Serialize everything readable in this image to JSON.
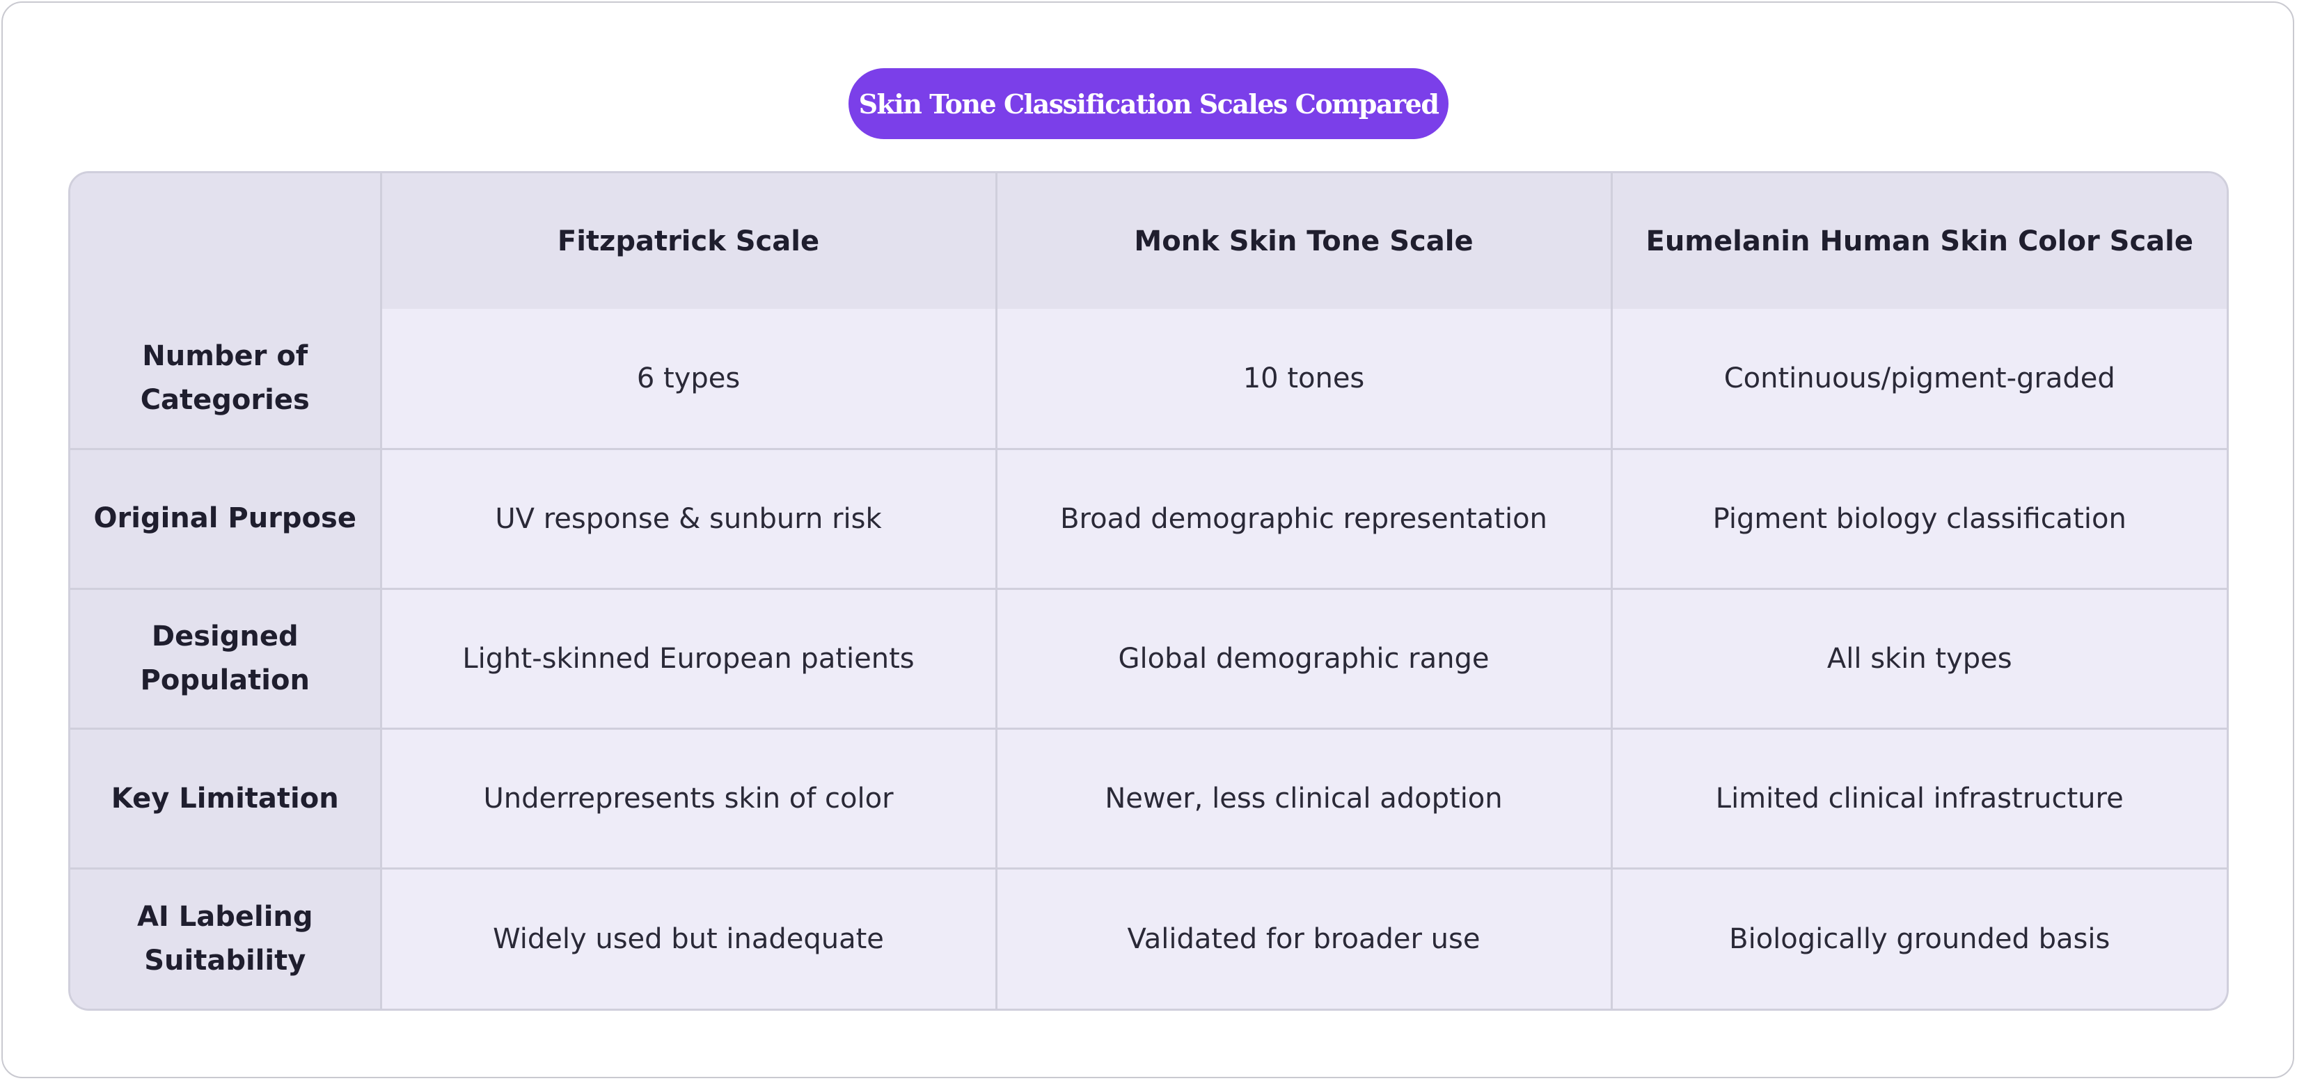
{
  "title": "Skin Tone Classification Scales Compared",
  "colors": {
    "accent": "#7b3fe9",
    "header_bg": "#e3e1ee",
    "cell_bg": "#eeecf8",
    "border": "#d0cfdc"
  },
  "table": {
    "corner": "",
    "columns": [
      "Fitzpatrick Scale",
      "Monk Skin Tone Scale",
      "Eumelanin Human Skin Color Scale"
    ],
    "rows": [
      {
        "label": "Number of Categories",
        "cells": [
          "6 types",
          "10 tones",
          "Continuous/pigment-graded"
        ]
      },
      {
        "label": "Original Purpose",
        "cells": [
          "UV response & sunburn risk",
          "Broad demographic representation",
          "Pigment biology classification"
        ]
      },
      {
        "label": "Designed Population",
        "cells": [
          "Light-skinned European patients",
          "Global demographic range",
          "All skin types"
        ]
      },
      {
        "label": "Key Limitation",
        "cells": [
          "Underrepresents skin of color",
          "Newer, less clinical adoption",
          "Limited clinical infrastructure"
        ]
      },
      {
        "label": "AI Labeling Suitability",
        "cells": [
          "Widely used but inadequate",
          "Validated for broader use",
          "Biologically grounded basis"
        ]
      }
    ]
  }
}
